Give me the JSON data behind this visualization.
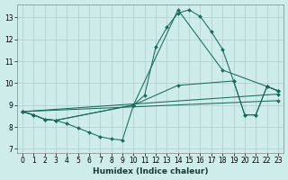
{
  "xlabel": "Humidex (Indice chaleur)",
  "bg_color": "#cdecea",
  "grid_color": "#b0ccca",
  "line_color": "#1a6b5a",
  "xlim": [
    -0.5,
    23.5
  ],
  "ylim": [
    6.8,
    13.6
  ],
  "xticks": [
    0,
    1,
    2,
    3,
    4,
    5,
    6,
    7,
    8,
    9,
    10,
    11,
    12,
    13,
    14,
    15,
    16,
    17,
    18,
    19,
    20,
    21,
    22,
    23
  ],
  "yticks": [
    7,
    8,
    9,
    10,
    11,
    12,
    13
  ],
  "series": [
    {
      "x": [
        0,
        1,
        2,
        3,
        4,
        5,
        6,
        7,
        8,
        9,
        10,
        11,
        12,
        13,
        14,
        15,
        16,
        17,
        18,
        19,
        20,
        21,
        22,
        23
      ],
      "y": [
        8.7,
        8.55,
        8.35,
        8.3,
        8.15,
        7.95,
        7.75,
        7.55,
        7.45,
        7.4,
        9.0,
        9.45,
        11.65,
        12.55,
        13.2,
        13.35,
        13.05,
        12.35,
        11.55,
        10.1,
        8.55,
        8.55,
        9.85,
        9.65
      ]
    },
    {
      "x": [
        0,
        1,
        2,
        3,
        10,
        14,
        18,
        22,
        23
      ],
      "y": [
        8.7,
        8.55,
        8.35,
        8.3,
        9.0,
        13.35,
        10.6,
        9.85,
        9.65
      ]
    },
    {
      "x": [
        0,
        1,
        2,
        3,
        10,
        14,
        19,
        20,
        21,
        22,
        23
      ],
      "y": [
        8.7,
        8.55,
        8.35,
        8.3,
        9.0,
        9.9,
        10.1,
        8.55,
        8.55,
        9.85,
        9.65
      ]
    },
    {
      "x": [
        0,
        23
      ],
      "y": [
        8.7,
        9.5
      ]
    },
    {
      "x": [
        0,
        23
      ],
      "y": [
        8.7,
        9.2
      ]
    }
  ]
}
